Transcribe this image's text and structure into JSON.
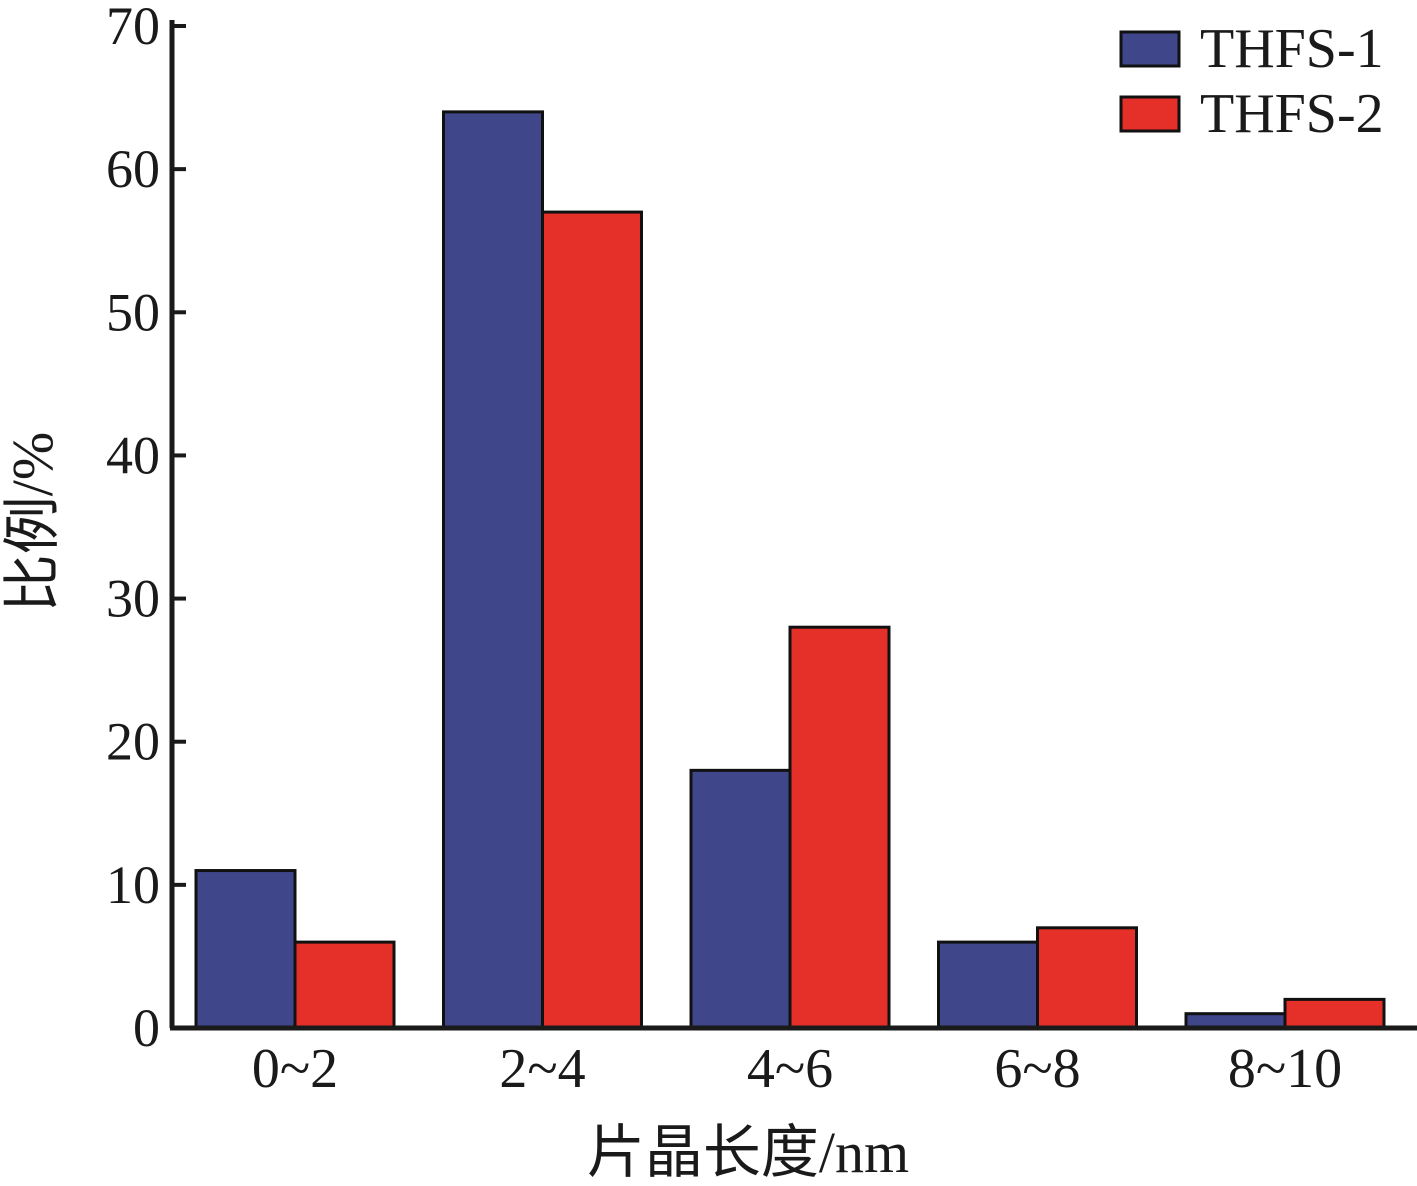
{
  "chart_data": {
    "type": "bar",
    "xlabel": "片晶长度/nm",
    "ylabel": "比例/%",
    "categories": [
      "0~2",
      "2~4",
      "4~6",
      "6~8",
      "8~10"
    ],
    "series": [
      {
        "name": "THFS-1",
        "color": "#3f478a",
        "values": [
          11,
          64,
          18,
          6,
          1
        ]
      },
      {
        "name": "THFS-2",
        "color": "#e5302a",
        "values": [
          6,
          57,
          28,
          7,
          2
        ]
      }
    ],
    "ylim": [
      0,
      70
    ],
    "yticks": [
      0,
      10,
      20,
      30,
      40,
      50,
      60,
      70
    ],
    "yticklabels": [
      "0",
      "10",
      "20",
      "30",
      "40",
      "50",
      "60",
      "70"
    ],
    "grid": false,
    "legend_position": "top-right"
  }
}
